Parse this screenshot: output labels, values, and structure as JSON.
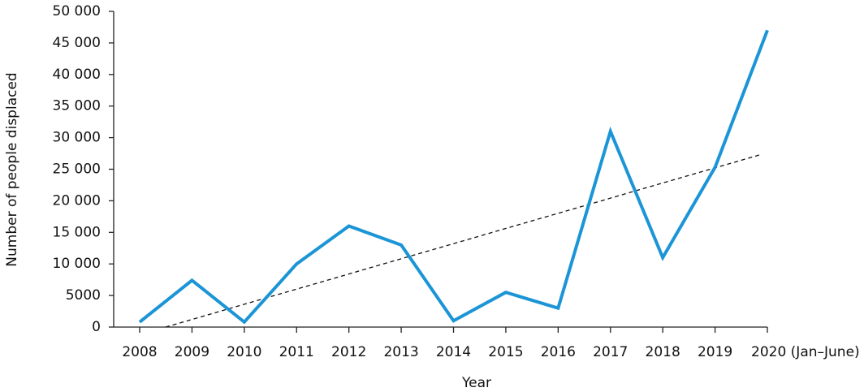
{
  "chart_data": {
    "type": "line",
    "x_label": "Year",
    "y_label": "Number of people displaced",
    "categories": [
      "2008",
      "2009",
      "2010",
      "2011",
      "2012",
      "2013",
      "2014",
      "2015",
      "2016",
      "2017",
      "2018",
      "2019",
      "2020 (Jan–June)"
    ],
    "series": [
      {
        "color": "#1b95d6",
        "values": [
          800,
          7400,
          800,
          10000,
          16000,
          13000,
          1000,
          5500,
          3000,
          31000,
          11000,
          25300,
          47000
        ]
      }
    ],
    "trendline": true,
    "ylim": [
      0,
      50000
    ],
    "yticks": [
      0,
      5000,
      {
        "value": 10000,
        "label": "10 000"
      },
      {
        "value": 15000,
        "label": "15 000"
      },
      {
        "value": 20000,
        "label": "20 000"
      },
      {
        "value": 25000,
        "label": "25 000"
      },
      {
        "value": 30000,
        "label": "30 000"
      },
      {
        "value": 35000,
        "label": "35 000"
      },
      {
        "value": 40000,
        "label": "40 000"
      },
      {
        "value": 45000,
        "label": "45 000"
      },
      {
        "value": 50000,
        "label": "50 000"
      }
    ],
    "grid": false
  }
}
